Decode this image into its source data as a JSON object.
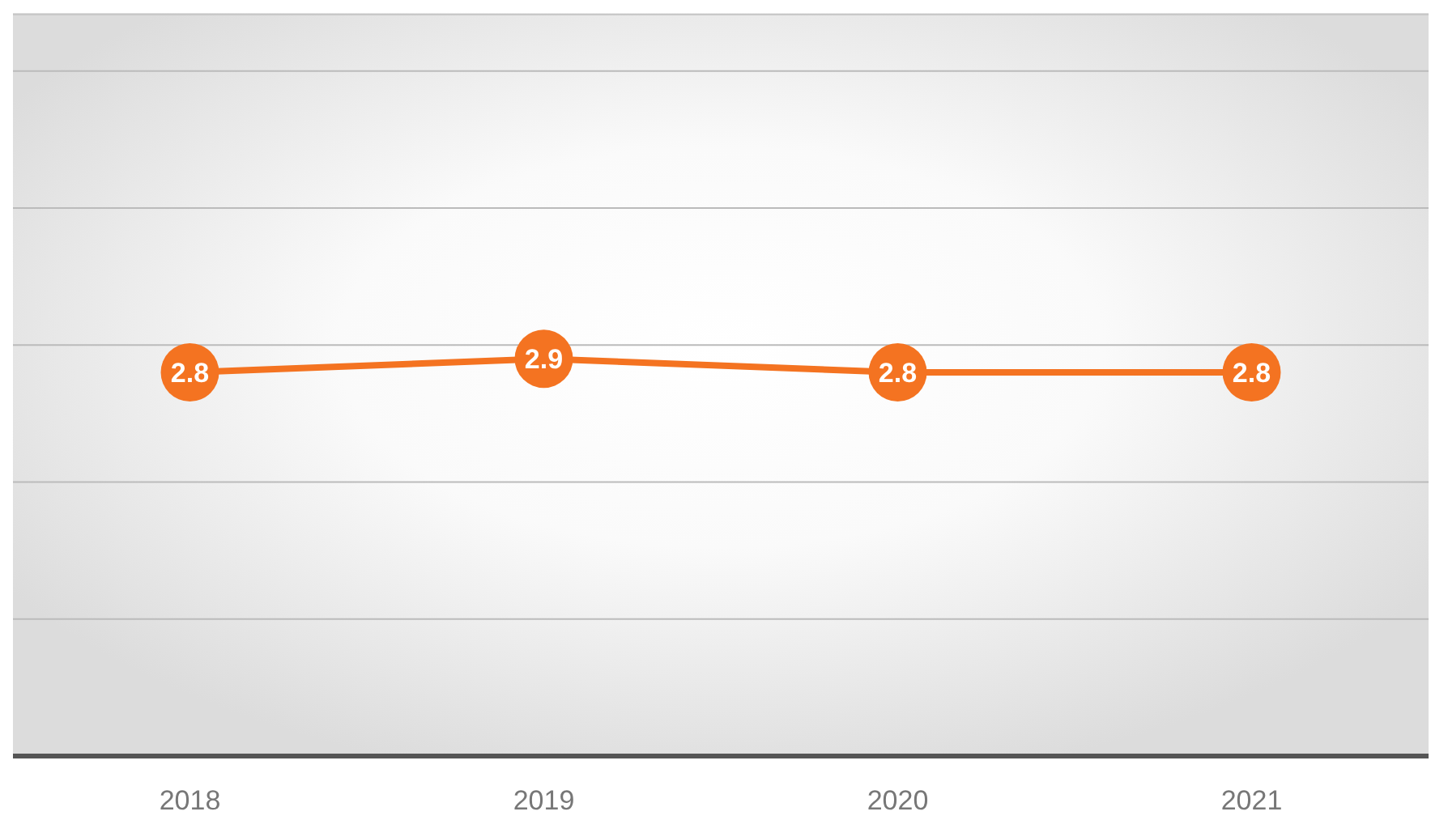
{
  "chart_data": {
    "type": "line",
    "categories": [
      "2018",
      "2019",
      "2020",
      "2021"
    ],
    "series": [
      {
        "color": "#f47321",
        "values": [
          2.8,
          2.9,
          2.8,
          2.8
        ]
      }
    ],
    "ylim": [
      0,
      5.4
    ],
    "yticks": [
      {
        "value": 0,
        "label": null
      },
      {
        "value": 1,
        "label": null
      },
      {
        "value": 2,
        "label": null
      },
      {
        "value": 3,
        "label": null
      },
      {
        "value": 4,
        "label": null
      },
      {
        "value": 5,
        "label": null
      }
    ],
    "tick_labels": "x",
    "grid": "y",
    "data_labels": true,
    "marker": "circle"
  }
}
